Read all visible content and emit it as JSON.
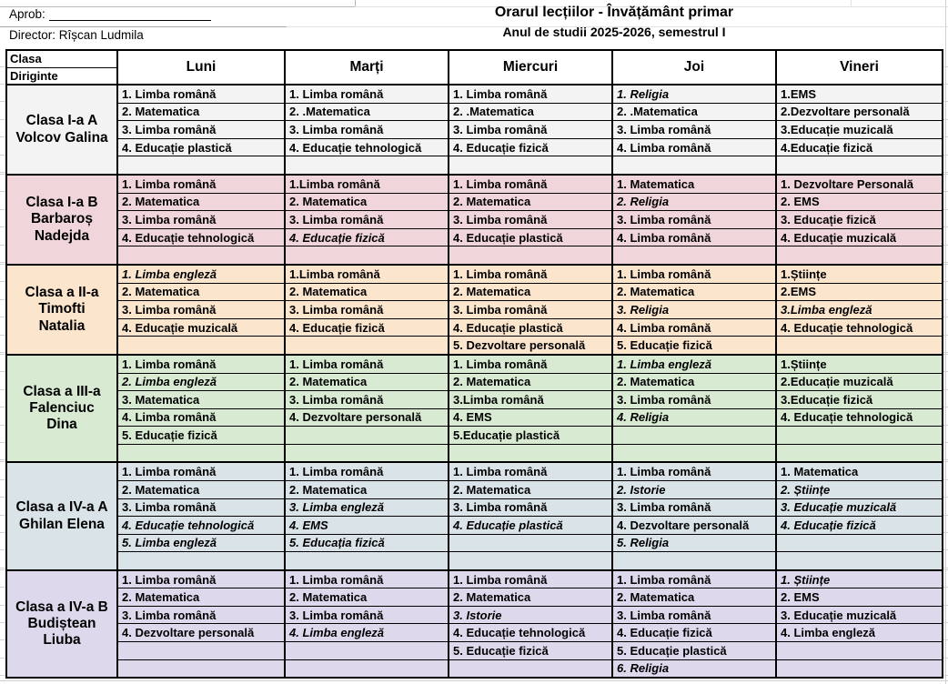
{
  "header": {
    "aprob_label": "Aprob:",
    "director_line": "Director: Rîșcan Ludmila",
    "title": "Orarul lecțiilor - Învățământ primar",
    "subtitle": "Anul de studii 2025-2026, semestrul I"
  },
  "corner": {
    "top": "Clasa",
    "bottom": "Diriginte"
  },
  "days": [
    "Luni",
    "Marți",
    "Miercuri",
    "Joi",
    "Vineri"
  ],
  "classes": [
    {
      "name": "Clasa I-a A",
      "teacher_lines": [
        "Volcov Galina"
      ],
      "bg": "#f3f3f3",
      "rows": 5,
      "schedule": [
        [
          "1. Limba română",
          "2. Matematica",
          "3. Limba română",
          "4. Educație plastică",
          ""
        ],
        [
          "1. Limba română",
          "2. .Matematica",
          "3. Limba română",
          "4. Educație tehnologică",
          ""
        ],
        [
          "1. Limba română",
          "2. .Matematica",
          "3. Limba română",
          "4. Educație fizică",
          ""
        ],
        [
          {
            "text": "1. Religia",
            "italic": true
          },
          "2. .Matematica",
          "3. Limba română",
          "4. Limba română",
          ""
        ],
        [
          "1.EMS",
          "2.Dezvoltare personală",
          "3.Educație muzicală",
          "4.Educație fizică",
          ""
        ]
      ]
    },
    {
      "name": "Clasa I-a B",
      "teacher_lines": [
        "Barbaroș",
        "Nadejda"
      ],
      "bg": "#f0d5db",
      "rows": 5,
      "schedule": [
        [
          "1. Limba română",
          "2. Matematica",
          "3. Limba română",
          "4. Educație tehnologică",
          ""
        ],
        [
          "1.Limba română",
          "2. Matematica",
          "3. Limba română",
          {
            "text": "4. Educație fizică",
            "italic": true
          },
          ""
        ],
        [
          "1. Limba română",
          "2. Matematica",
          "3. Limba română",
          "4. Educație plastică",
          ""
        ],
        [
          "1. Matematica",
          {
            "text": "2. Religia",
            "italic": true
          },
          "3. Limba română",
          "4. Limba română",
          ""
        ],
        [
          "1. Dezvoltare Personală",
          "2. EMS",
          "3. Educație fizică",
          "4. Educație muzicală",
          ""
        ]
      ]
    },
    {
      "name": "Clasa a II-a",
      "teacher_lines": [
        "Timofti",
        "Natalia"
      ],
      "bg": "#fce5cd",
      "rows": 5,
      "schedule": [
        [
          {
            "text": "1. Limba engleză",
            "italic": true
          },
          "2. Matematica",
          "3. Limba română",
          "4. Educație muzicală",
          ""
        ],
        [
          "1.Limba română",
          "2. Matematica",
          "3. Limba română",
          "4. Educație fizică",
          ""
        ],
        [
          "1. Limba română",
          "2. Matematica",
          "3. Limba română",
          "4. Educație plastică",
          "5. Dezvoltare personală"
        ],
        [
          "1. Limba română",
          "2. Matematica",
          {
            "text": "3. Religia",
            "italic": true
          },
          "4. Limba română",
          "5. Educație fizică"
        ],
        [
          "1.Științe",
          "2.EMS",
          {
            "text": "3.Limba engleză",
            "italic": true
          },
          "4. Educație tehnologică",
          ""
        ]
      ]
    },
    {
      "name": "Clasa a III-a",
      "teacher_lines": [
        "Falenciuc",
        "Dina"
      ],
      "bg": "#d9ead3",
      "rows": 6,
      "schedule": [
        [
          "1. Limba română",
          {
            "text": "2. Limba engleză",
            "italic": true
          },
          "3. Matematica",
          "4. Limba română",
          "5. Educație fizică",
          ""
        ],
        [
          "1. Limba română",
          "2. Matematica",
          "3. Limba română",
          "4. Dezvoltare personală",
          "",
          ""
        ],
        [
          "1. Limba română",
          "2. Matematica",
          "3.Limba română",
          "4. EMS",
          "5.Educație plastică",
          ""
        ],
        [
          {
            "text": "1. Limba engleză",
            "italic": true
          },
          "2. Matematica",
          "3. Limba română",
          {
            "text": "4. Religia",
            "italic": true
          },
          "",
          ""
        ],
        [
          "1.Științe",
          "2.Educație muzicală",
          "3.Educație fizică",
          "4. Educație tehnologică",
          "",
          ""
        ]
      ]
    },
    {
      "name": "Clasa a IV-a A",
      "teacher_lines": [
        "Ghilan Elena"
      ],
      "bg": "#dae3e8",
      "rows": 6,
      "schedule": [
        [
          "1. Limba română",
          "2. Matematica",
          "3. Limba română",
          {
            "text": "4. Educație tehnologică",
            "italic": true
          },
          {
            "text": "5. Limba engleză",
            "italic": true
          },
          ""
        ],
        [
          "1. Limba română",
          "2. Matematica",
          {
            "text": "3. Limba engleză",
            "italic": true
          },
          {
            "text": "4. EMS",
            "italic": true
          },
          {
            "text": "5. Educația fizică",
            "italic": true
          },
          ""
        ],
        [
          "1. Limba română",
          "2. Matematica",
          "3. Limba română",
          {
            "text": "4. Educație plastică",
            "italic": true
          },
          "",
          ""
        ],
        [
          "1. Limba română",
          {
            "text": "2. Istorie",
            "italic": true
          },
          "3. Limba română",
          "4. Dezvoltare personală",
          {
            "text": "5. Religia",
            "italic": true
          },
          ""
        ],
        [
          "1. Matematica",
          {
            "text": "2. Științe",
            "italic": true
          },
          {
            "text": "3. Educație muzicală",
            "italic": true
          },
          {
            "text": "4. Educație fizică",
            "italic": true
          },
          "",
          ""
        ]
      ]
    },
    {
      "name": "Clasa a IV-a B",
      "teacher_lines": [
        "Budiștean",
        "Liuba"
      ],
      "bg": "#ded8ec",
      "rows": 6,
      "schedule": [
        [
          "1. Limba română",
          "2. Matematica",
          "3. Limba română",
          "4. Dezvoltare personală",
          "",
          ""
        ],
        [
          "1. Limba română",
          "2. Matematica",
          "3. Limba română",
          {
            "text": "4. Limba engleză",
            "italic": true
          },
          "",
          ""
        ],
        [
          "1. Limba română",
          "2. Matematica",
          {
            "text": "3. Istorie",
            "italic": true
          },
          "4. Educație tehnologică",
          "5. Educație fizică",
          ""
        ],
        [
          "1. Limba română",
          "2. Matematica",
          "3. Limba română",
          "4. Educație fizică",
          "5. Educație plastică",
          {
            "text": "6. Religia",
            "italic": true
          }
        ],
        [
          {
            "text": "1. Științe",
            "italic": true
          },
          "2. EMS",
          "3. Educație muzicală",
          "4. Limba engleză",
          "",
          ""
        ]
      ]
    }
  ]
}
